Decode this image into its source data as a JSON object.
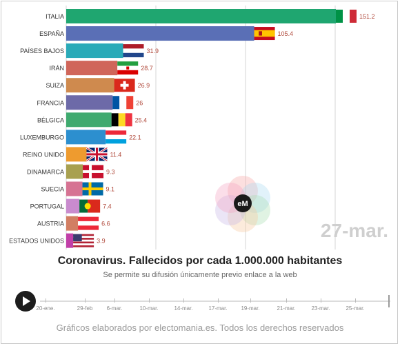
{
  "chart_data": {
    "type": "bar",
    "orientation": "horizontal",
    "categories": [
      "ITALIA",
      "ESPAÑA",
      "PAÍSES BAJOS",
      "IRÁN",
      "SUIZA",
      "FRANCIA",
      "BÉLGICA",
      "LUXEMBURGO",
      "REINO UNIDO",
      "DINAMARCA",
      "SUECIA",
      "PORTUGAL",
      "AUSTRIA",
      "ESTADOS UNIDOS"
    ],
    "values": [
      151.2,
      105.4,
      31.9,
      28.7,
      26.9,
      26,
      25.4,
      22.1,
      11.4,
      9.3,
      9.1,
      7.4,
      6.6,
      3.9
    ],
    "value_labels": [
      "151.2",
      "105.4",
      "31.9",
      "28.7",
      "26.9",
      "26",
      "25.4",
      "22.1",
      "11.4",
      "9.3",
      "9.1",
      "7.4",
      "6.6",
      "3.9"
    ],
    "colors": [
      "#1fa670",
      "#5a6fb6",
      "#2aaab8",
      "#d0665a",
      "#cf8a4e",
      "#6d6aa8",
      "#3faa6f",
      "#2c8fcf",
      "#ee9b2f",
      "#a8a04f",
      "#d67393",
      "#c98bce",
      "#d27e63",
      "#c13fa8"
    ],
    "flags": [
      "italy",
      "spain",
      "netherlands",
      "iran",
      "switzerland",
      "france",
      "belgium",
      "luxembourg",
      "united-kingdom",
      "denmark",
      "sweden",
      "portugal",
      "austria",
      "united-states"
    ],
    "xlim": [
      0,
      160
    ],
    "grid": true,
    "date_label": "27-mar.",
    "title": "Coronavirus. Fallecidos por cada 1.000.000 habitantes",
    "subtitle": "Se permite su difusión únicamente previo enlace a la web"
  },
  "timeline": {
    "labels": [
      "20-ene.",
      "29-feb",
      "6-mar.",
      "10-mar.",
      "14-mar.",
      "17-mar.",
      "19-mar.",
      "21-mar.",
      "23-mar.",
      "25-mar."
    ]
  },
  "logo": {
    "text": "eM"
  },
  "footer": "Gráficos elaborados por electomania.es. Todos los derechos reservados",
  "colors": {
    "value_label": "#b0483a",
    "grid": "#d6d6d6",
    "date_label": "#cfcfcf"
  }
}
